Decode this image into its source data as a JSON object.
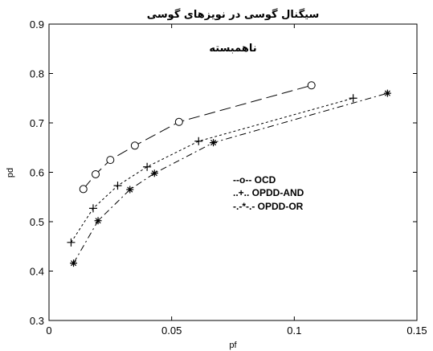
{
  "chart_data": {
    "type": "line",
    "title_line1": "سیگنال گوسی در نویزهای گوسی",
    "title_line2": "ناهمبسته",
    "xlabel": "pf",
    "ylabel": "pd",
    "xlim": [
      0,
      0.15
    ],
    "ylim": [
      0.3,
      0.9
    ],
    "xticks": [
      0,
      0.05,
      0.1,
      0.15
    ],
    "xtick_labels": [
      "0",
      "0.05",
      "0.1",
      "0.15"
    ],
    "yticks": [
      0.3,
      0.4,
      0.5,
      0.6,
      0.7,
      0.8,
      0.9
    ],
    "ytick_labels": [
      "0.3",
      "0.4",
      "0.5",
      "0.6",
      "0.7",
      "0.8",
      "0.9"
    ],
    "grid": false,
    "legend_placement": "center-right",
    "series": [
      {
        "name": "--o-- OCD",
        "marker": "circle",
        "dash": "long-dash",
        "x": [
          0.014,
          0.019,
          0.025,
          0.035,
          0.053,
          0.107
        ],
        "y": [
          0.566,
          0.596,
          0.625,
          0.654,
          0.702,
          0.776
        ]
      },
      {
        "name": "..+.. OPDD-AND",
        "marker": "plus",
        "dash": "dotted",
        "x": [
          0.009,
          0.018,
          0.028,
          0.04,
          0.061,
          0.124
        ],
        "y": [
          0.458,
          0.527,
          0.573,
          0.611,
          0.663,
          0.75
        ]
      },
      {
        "name": "-.-*-.- OPDD-OR",
        "marker": "star",
        "dash": "dash-dot",
        "x": [
          0.01,
          0.02,
          0.033,
          0.043,
          0.067,
          0.138
        ],
        "y": [
          0.416,
          0.502,
          0.565,
          0.598,
          0.66,
          0.76
        ]
      }
    ]
  }
}
